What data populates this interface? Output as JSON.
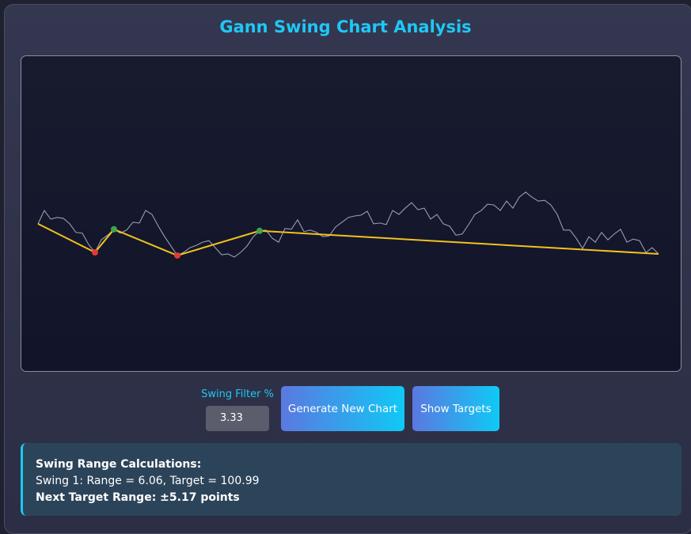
{
  "title": "Gann Swing Chart Analysis",
  "chart_data": {
    "type": "line",
    "ylim": [
      62,
      142
    ],
    "price": {
      "color": "#9a9cb0",
      "values": [
        99.6,
        103.0,
        100.8,
        101.2,
        101.0,
        99.6,
        97.4,
        97.2,
        94.3,
        92.3,
        95.5,
        96.7,
        98.2,
        97.2,
        98.0,
        100.0,
        99.8,
        103.0,
        102.0,
        99.0,
        96.3,
        93.9,
        91.5,
        92.3,
        93.5,
        94.1,
        94.9,
        95.3,
        93.5,
        91.7,
        91.9,
        91.1,
        92.3,
        93.9,
        96.3,
        97.8,
        98.0,
        95.9,
        94.9,
        98.4,
        98.2,
        100.6,
        97.6,
        98.0,
        97.4,
        96.3,
        96.5,
        98.8,
        100.0,
        101.2,
        101.6,
        101.8,
        102.8,
        99.6,
        99.8,
        99.4,
        103.0,
        102.0,
        103.6,
        105.0,
        103.2,
        103.6,
        100.8,
        102.0,
        99.6,
        99.0,
        96.7,
        97.0,
        99.4,
        102.0,
        103.0,
        104.6,
        104.4,
        103.0,
        105.4,
        103.6,
        106.4,
        107.7,
        106.4,
        105.4,
        105.6,
        104.4,
        102.0,
        98.0,
        98.0,
        95.9,
        93.3,
        96.3,
        94.9,
        97.4,
        95.5,
        97.0,
        98.2,
        94.9,
        95.7,
        95.3,
        92.3,
        93.5,
        91.9
      ]
    },
    "swing_line": {
      "color": "#f2c21b",
      "x": [
        0,
        9,
        12,
        22,
        35,
        98
      ],
      "values": [
        99.6,
        92.3,
        98.2,
        91.5,
        97.8,
        91.9
      ]
    },
    "swing_highs": {
      "color": "#3fa34d",
      "x": [
        12,
        35
      ],
      "values": [
        98.2,
        97.8
      ]
    },
    "swing_lows": {
      "color": "#e53935",
      "x": [
        9,
        22
      ],
      "values": [
        92.3,
        91.5
      ]
    }
  },
  "controls": {
    "filter_label": "Swing Filter %",
    "filter_value": "3.33",
    "generate_button": "Generate New Chart",
    "targets_button": "Show Targets"
  },
  "info": {
    "heading": "Swing Range Calculations:",
    "line1": "Swing 1: Range = 6.06, Target = 100.99",
    "line2": "Next Target Range: ±5.17 points"
  }
}
